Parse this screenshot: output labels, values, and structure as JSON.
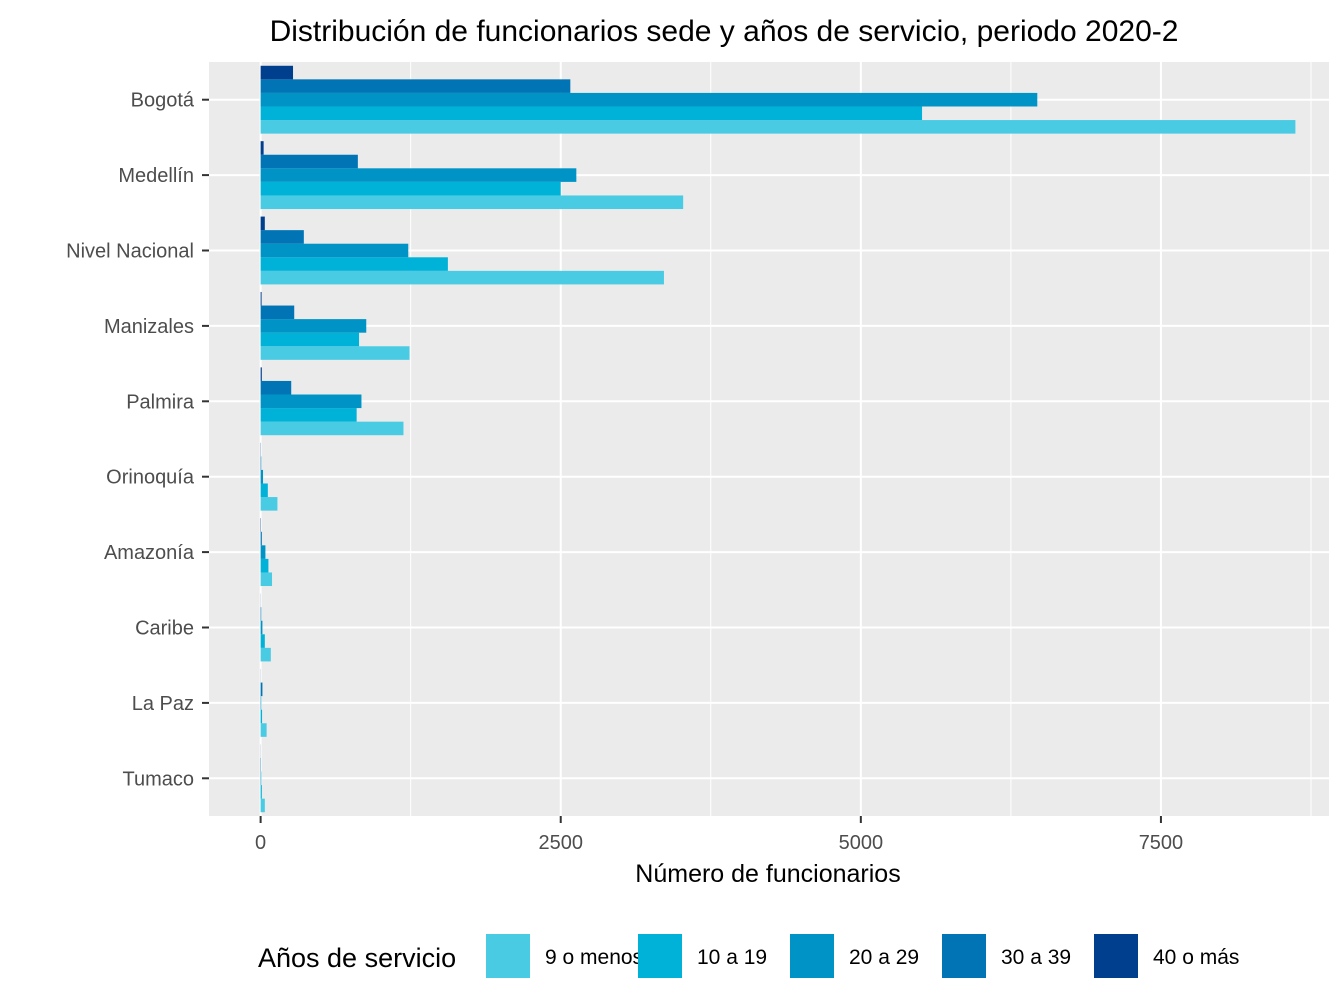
{
  "chart_data": {
    "type": "bar",
    "orientation": "horizontal",
    "title": "Distribución de funcionarios sede y años de servicio, periodo 2020-2",
    "xlabel": "Número de funcionarios",
    "ylabel": "",
    "xlim": [
      -430,
      8900
    ],
    "xticks": [
      0,
      2500,
      5000,
      7500
    ],
    "xtick_labels": [
      "0",
      "2500",
      "5000",
      "7500"
    ],
    "grid": true,
    "legend_title": "Años de servicio",
    "legend_position": "bottom",
    "categories": [
      "Bogotá",
      "Medellín",
      "Nivel Nacional",
      "Manizales",
      "Palmira",
      "Orinoquía",
      "Amazonía",
      "Caribe",
      "La Paz",
      "Tumaco"
    ],
    "series": [
      {
        "name": "9 o menos",
        "color": "#4ACBE4",
        "values": [
          8620,
          3520,
          3360,
          1240,
          1190,
          140,
          95,
          85,
          50,
          35
        ]
      },
      {
        "name": "10 a 19",
        "color": "#00B2D8",
        "values": [
          5510,
          2500,
          1560,
          820,
          800,
          60,
          65,
          35,
          12,
          10
        ]
      },
      {
        "name": "20 a 29",
        "color": "#0093C6",
        "values": [
          6470,
          2630,
          1230,
          880,
          840,
          20,
          40,
          15,
          5,
          5
        ]
      },
      {
        "name": "30 a 39",
        "color": "#0074B5",
        "values": [
          2580,
          810,
          360,
          280,
          255,
          5,
          10,
          5,
          15,
          3
        ]
      },
      {
        "name": "40 o más",
        "color": "#003F8E",
        "values": [
          270,
          25,
          35,
          8,
          10,
          2,
          3,
          1,
          1,
          1
        ]
      }
    ]
  }
}
